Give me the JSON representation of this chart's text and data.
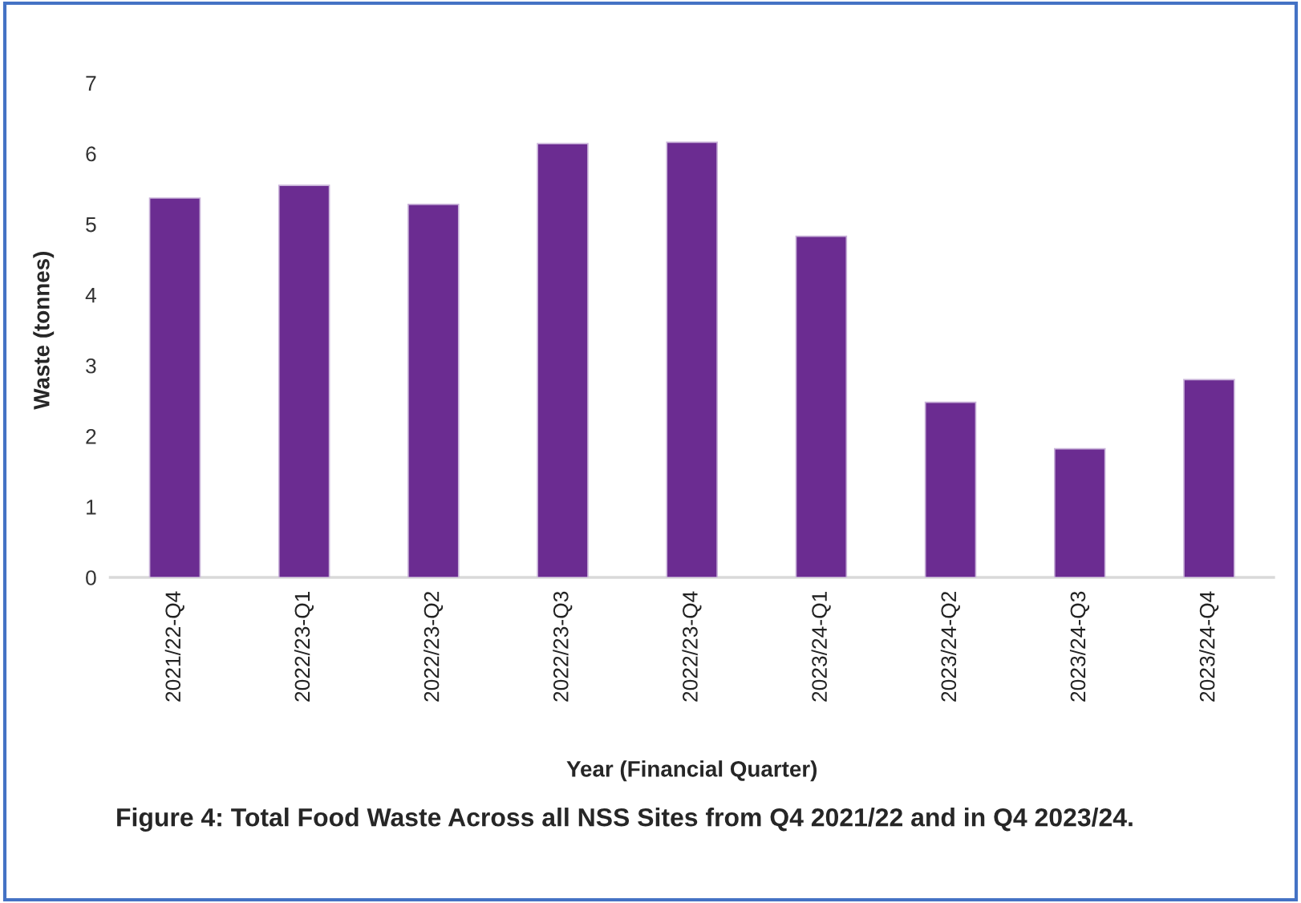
{
  "chart_data": {
    "type": "bar",
    "title": "Figure 4: Total Food Waste Across all NSS Sites from Q4 2021/22 and in Q4 2023/24.",
    "xlabel": "Year (Financial Quarter)",
    "ylabel": "Waste (tonnes)",
    "categories": [
      "2021/22-Q4",
      "2022/23-Q1",
      "2022/23-Q2",
      "2022/23-Q3",
      "2022/23-Q4",
      "2023/24-Q1",
      "2023/24-Q2",
      "2023/24-Q3",
      "2023/24-Q4"
    ],
    "values": [
      5.37,
      5.55,
      5.28,
      6.14,
      6.16,
      4.83,
      2.48,
      1.82,
      2.8
    ],
    "color": "#6b2c91",
    "ylim": [
      0,
      7
    ],
    "yticks": [
      0,
      1,
      2,
      3,
      4,
      5,
      6,
      7
    ],
    "grid": false,
    "legend": false
  }
}
